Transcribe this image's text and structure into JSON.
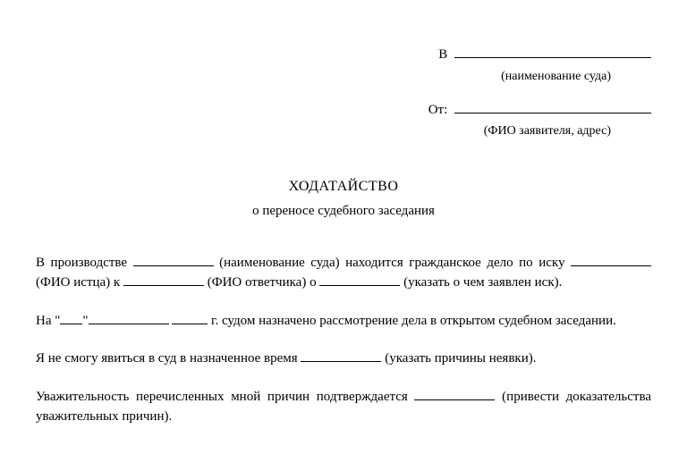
{
  "header": {
    "to_label": "В",
    "to_hint": "(наименование суда)",
    "from_label": "От:",
    "from_hint": "(ФИО заявителя, адрес)"
  },
  "title": {
    "main": "ХОДАТАЙСТВО",
    "sub": "о переносе судебного заседания"
  },
  "body": {
    "p1_part1": "В производстве ",
    "p1_hint1": " (наименование суда) находится гражданское дело по иску ",
    "p1_hint2": " (ФИО истца) к ",
    "p1_hint3": " (ФИО ответчика) о ",
    "p1_hint4": " (указать о чем заявлен иск).",
    "p2_part1": "На \"",
    "p2_part2": "\"",
    "p2_part3": " г. судом назначено рассмотрение дела в открытом судебном заседании.",
    "p3_part1": "Я не смогу явиться в суд в назначенное время ",
    "p3_hint1": " (указать причины неявки).",
    "p4_part1": "Уважительность перечисленных мной причин подтверждается ",
    "p4_hint1": " (привести доказательства уважительных причин)."
  },
  "style": {
    "font_family": "Times New Roman",
    "background_color": "#ffffff",
    "text_color": "#000000",
    "body_font_size": 15,
    "title_font_size": 16
  }
}
